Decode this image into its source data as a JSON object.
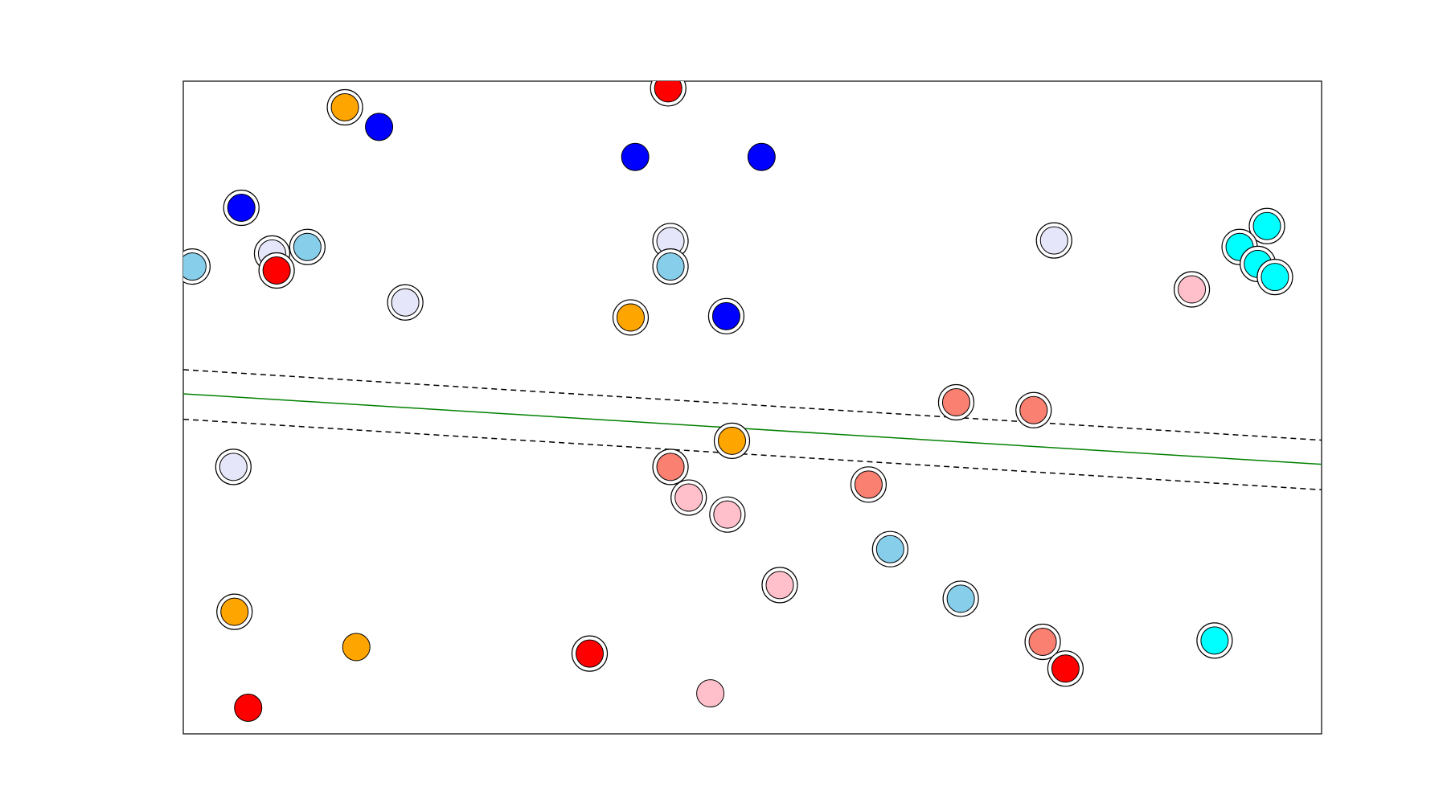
{
  "chart_data": {
    "type": "scatter",
    "xlim": [
      0,
      1
    ],
    "ylim": [
      0,
      1
    ],
    "points": {
      "x": [
        0.142,
        0.172,
        0.426,
        0.397,
        0.508,
        0.051,
        0.078,
        0.109,
        0.082,
        0.008,
        0.195,
        0.428,
        0.428,
        0.393,
        0.477,
        0.765,
        0.952,
        0.928,
        0.944,
        0.959,
        0.886,
        0.679,
        0.747,
        0.482,
        0.044,
        0.428,
        0.444,
        0.478,
        0.602,
        0.621,
        0.524,
        0.683,
        0.045,
        0.152,
        0.357,
        0.755,
        0.775,
        0.906,
        0.057,
        0.463
      ],
      "y": [
        0.96,
        0.93,
        0.989,
        0.884,
        0.884,
        0.806,
        0.736,
        0.746,
        0.71,
        0.716,
        0.661,
        0.755,
        0.716,
        0.638,
        0.64,
        0.756,
        0.778,
        0.746,
        0.72,
        0.7,
        0.681,
        0.508,
        0.496,
        0.449,
        0.409,
        0.409,
        0.362,
        0.336,
        0.382,
        0.283,
        0.228,
        0.207,
        0.187,
        0.133,
        0.123,
        0.141,
        0.1,
        0.143,
        0.04,
        0.062
      ],
      "colors": [
        "orange",
        "blue",
        "red",
        "blue",
        "blue",
        "blue",
        "lavender",
        "skyblue",
        "red",
        "skyblue",
        "lavender",
        "lavender",
        "skyblue",
        "orange",
        "blue",
        "lavender",
        "cyan",
        "cyan",
        "cyan",
        "cyan",
        "pink",
        "salmon",
        "salmon",
        "orange",
        "lavender",
        "salmon",
        "pink",
        "pink",
        "salmon",
        "skyblue",
        "pink",
        "skyblue",
        "orange",
        "orange",
        "red",
        "salmon",
        "red",
        "cyan",
        "red",
        "pink"
      ],
      "support_vector": [
        true,
        false,
        true,
        false,
        false,
        true,
        true,
        true,
        true,
        true,
        true,
        true,
        true,
        true,
        true,
        true,
        true,
        true,
        true,
        true,
        true,
        true,
        true,
        true,
        true,
        true,
        true,
        true,
        true,
        true,
        true,
        true,
        true,
        false,
        true,
        true,
        true,
        true,
        false,
        false
      ]
    },
    "lines": [
      {
        "color": "green",
        "dashed": false,
        "x": [
          0,
          1
        ],
        "y": [
          0.521,
          0.413
        ]
      },
      {
        "color": "black",
        "dashed": true,
        "x": [
          0,
          1
        ],
        "y": [
          0.558,
          0.45
        ]
      },
      {
        "color": "black",
        "dashed": true,
        "x": [
          0,
          1
        ],
        "y": [
          0.482,
          0.374
        ]
      }
    ]
  }
}
